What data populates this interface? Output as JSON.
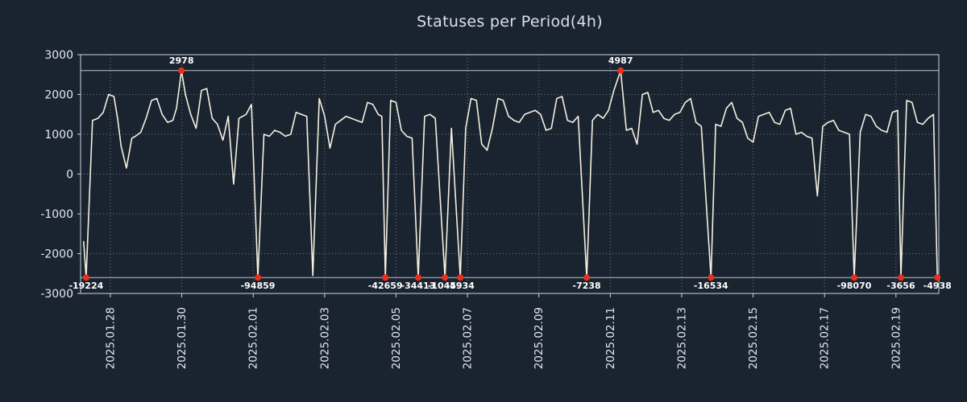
{
  "colors": {
    "background": "#1a2430",
    "line": "#f5efdf",
    "marker": "#ee2d1d",
    "grid": "#9aa7b6",
    "border": "#c9d3de",
    "clip_line": "#b6c4d2",
    "tick_text": "#e2e8f0",
    "annotation_text": "#ffffff",
    "title_text": "#d9e0e9"
  },
  "chart_data": {
    "type": "line",
    "title": "Statuses per Period(4h)",
    "xlabel": "",
    "ylabel": "",
    "ylim": [
      -3000,
      3000
    ],
    "yticks": [
      3000,
      2000,
      1000,
      0,
      -1000,
      -2000,
      -3000
    ],
    "x_range_days": [
      0.165,
      24.2
    ],
    "grid": true,
    "legend": "none",
    "clip_top": 2600,
    "clip_bottom": -2600,
    "xticks": {
      "days": [
        1,
        3,
        5,
        7,
        9,
        11,
        13,
        15,
        17,
        19,
        21,
        23
      ],
      "labels": [
        "2025.01.28",
        "2025.01.30",
        "2025.02.01",
        "2025.02.03",
        "2025.02.05",
        "2025.02.07",
        "2025.02.09",
        "2025.02.11",
        "2025.02.13",
        "2025.02.15",
        "2025.02.17",
        "2025.02.19"
      ]
    },
    "series": {
      "name": "statuses",
      "x": [
        0.25,
        0.32,
        0.5,
        0.65,
        0.8,
        0.95,
        1.1,
        1.2,
        1.3,
        1.45,
        1.6,
        1.7,
        1.85,
        2.0,
        2.15,
        2.3,
        2.45,
        2.6,
        2.75,
        2.85,
        2.99,
        3.1,
        3.25,
        3.4,
        3.55,
        3.7,
        3.85,
        4.0,
        4.15,
        4.3,
        4.45,
        4.6,
        4.8,
        4.95,
        5.13,
        5.3,
        5.45,
        5.6,
        5.75,
        5.9,
        6.05,
        6.2,
        6.35,
        6.5,
        6.67,
        6.85,
        7.0,
        7.15,
        7.3,
        7.45,
        7.6,
        7.75,
        7.9,
        8.05,
        8.2,
        8.35,
        8.5,
        8.6,
        8.7,
        8.85,
        9.0,
        9.15,
        9.3,
        9.45,
        9.62,
        9.8,
        9.95,
        10.1,
        10.37,
        10.55,
        10.8,
        10.95,
        11.1,
        11.25,
        11.4,
        11.55,
        11.7,
        11.85,
        12.0,
        12.15,
        12.3,
        12.45,
        12.6,
        12.75,
        12.9,
        13.05,
        13.2,
        13.35,
        13.5,
        13.65,
        13.8,
        13.95,
        14.1,
        14.34,
        14.5,
        14.65,
        14.8,
        14.95,
        15.1,
        15.29,
        15.45,
        15.6,
        15.75,
        15.9,
        16.05,
        16.2,
        16.35,
        16.5,
        16.65,
        16.8,
        16.95,
        17.1,
        17.25,
        17.4,
        17.55,
        17.82,
        17.95,
        18.1,
        18.25,
        18.4,
        18.55,
        18.7,
        18.85,
        19.0,
        19.15,
        19.3,
        19.45,
        19.6,
        19.75,
        19.9,
        20.05,
        20.2,
        20.35,
        20.5,
        20.65,
        20.8,
        20.95,
        21.1,
        21.25,
        21.4,
        21.55,
        21.7,
        21.83,
        22.0,
        22.15,
        22.3,
        22.45,
        22.6,
        22.75,
        22.9,
        23.05,
        23.14,
        23.3,
        23.45,
        23.6,
        23.75,
        23.9,
        24.05,
        24.16
      ],
      "y": [
        -1700,
        -2600,
        1350,
        1400,
        1550,
        2000,
        1950,
        1400,
        700,
        150,
        900,
        950,
        1050,
        1400,
        1850,
        1900,
        1500,
        1300,
        1350,
        1650,
        2600,
        2000,
        1500,
        1150,
        2100,
        2150,
        1400,
        1250,
        850,
        1450,
        -250,
        1400,
        1500,
        1750,
        -2600,
        1000,
        950,
        1100,
        1050,
        950,
        1000,
        1550,
        1500,
        1450,
        -2550,
        1900,
        1450,
        650,
        1250,
        1350,
        1450,
        1400,
        1350,
        1300,
        1800,
        1750,
        1500,
        1450,
        -2600,
        1850,
        1800,
        1100,
        950,
        900,
        -2600,
        1450,
        1500,
        1400,
        -2600,
        1150,
        -2600,
        1150,
        1900,
        1850,
        750,
        600,
        1150,
        1900,
        1850,
        1450,
        1350,
        1300,
        1500,
        1550,
        1600,
        1500,
        1100,
        1150,
        1900,
        1950,
        1350,
        1300,
        1450,
        -2600,
        1350,
        1500,
        1400,
        1600,
        2100,
        2600,
        1100,
        1150,
        750,
        2000,
        2050,
        1550,
        1600,
        1400,
        1350,
        1500,
        1550,
        1800,
        1900,
        1300,
        1200,
        -2600,
        1250,
        1200,
        1650,
        1800,
        1400,
        1300,
        900,
        800,
        1450,
        1500,
        1550,
        1300,
        1250,
        1600,
        1650,
        1000,
        1050,
        950,
        900,
        -550,
        1200,
        1300,
        1350,
        1100,
        1050,
        1000,
        -2600,
        1050,
        1500,
        1450,
        1200,
        1100,
        1050,
        1550,
        1600,
        -2600,
        1850,
        1800,
        1300,
        1250,
        1400,
        1500,
        -2600
      ]
    },
    "annotations_top": [
      {
        "x": 2.99,
        "label": "2978"
      },
      {
        "x": 15.29,
        "label": "4987"
      }
    ],
    "annotations_bottom": [
      {
        "x": 0.32,
        "label": "-19224"
      },
      {
        "x": 5.13,
        "label": "-94859"
      },
      {
        "x": 8.7,
        "label": "-42659"
      },
      {
        "x": 9.62,
        "label": "-34413"
      },
      {
        "x": 10.37,
        "label": "-10459"
      },
      {
        "x": 10.8,
        "label": "-4934"
      },
      {
        "x": 14.34,
        "label": "-7238"
      },
      {
        "x": 17.82,
        "label": "-16534"
      },
      {
        "x": 21.83,
        "label": "-98070"
      },
      {
        "x": 23.14,
        "label": "-3656"
      },
      {
        "x": 24.16,
        "label": "-4938"
      }
    ]
  }
}
